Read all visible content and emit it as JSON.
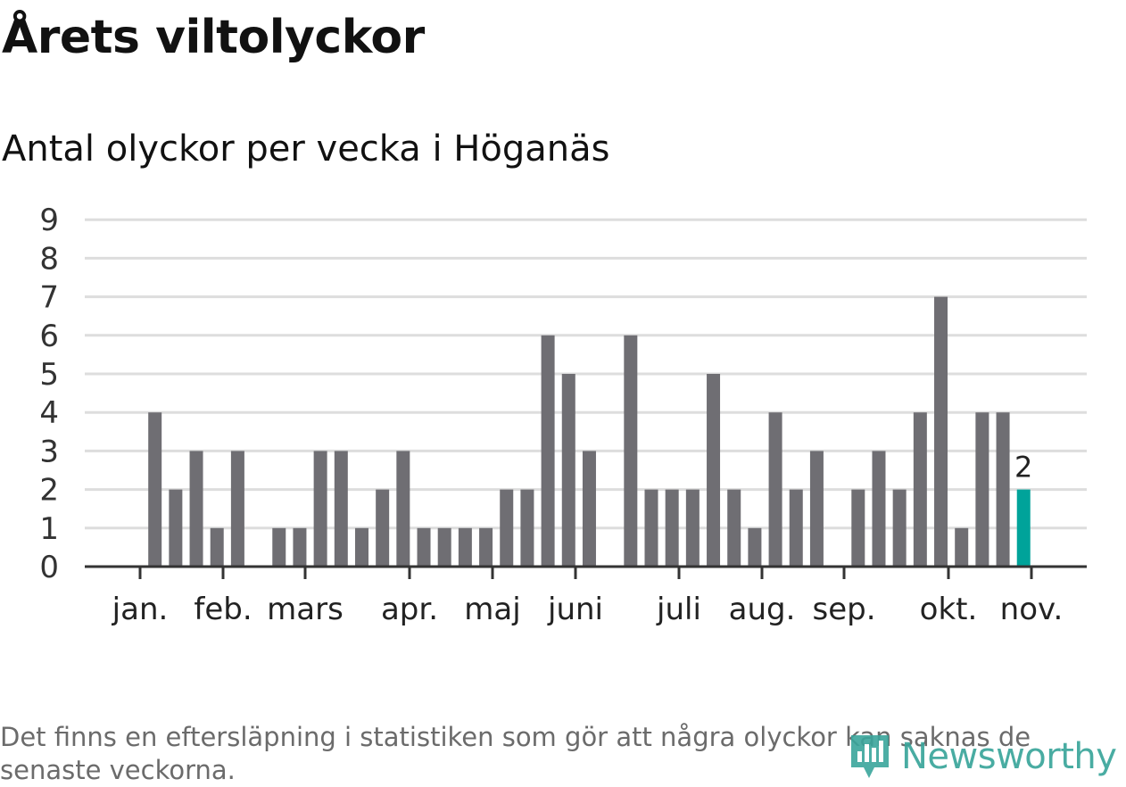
{
  "title": "Årets viltolyckor",
  "subtitle": "Antal olyckor per vecka i Höganäs",
  "footnote": "Det finns en eftersläpning i statistiken som gör att några olyckor kan saknas de senaste veckorna.",
  "brand": "Newsworthy",
  "colors": {
    "bar": "#6f6e73",
    "highlight": "#00a39a",
    "grid": "#dddddd",
    "axis": "#333333",
    "brand": "#3aa59b"
  },
  "chart_data": {
    "type": "bar",
    "title": "Antal olyckor per vecka i Höganäs",
    "xlabel": "",
    "ylabel": "",
    "ylim": [
      0,
      9
    ],
    "yticks": [
      "0",
      "1",
      "2",
      "3",
      "4",
      "5",
      "6",
      "7",
      "8",
      "9"
    ],
    "month_labels": [
      "jan.",
      "feb.",
      "mars",
      "apr.",
      "maj",
      "juni",
      "juli",
      "aug.",
      "sep.",
      "okt.",
      "nov."
    ],
    "values": [
      0,
      4,
      2,
      3,
      1,
      3,
      0,
      1,
      1,
      3,
      3,
      1,
      2,
      3,
      1,
      1,
      1,
      1,
      2,
      2,
      6,
      5,
      3,
      0,
      6,
      2,
      2,
      2,
      5,
      2,
      1,
      4,
      2,
      3,
      0,
      2,
      3,
      2,
      4,
      7,
      1,
      4,
      4,
      2
    ],
    "highlight_label": "2",
    "grid": true
  }
}
